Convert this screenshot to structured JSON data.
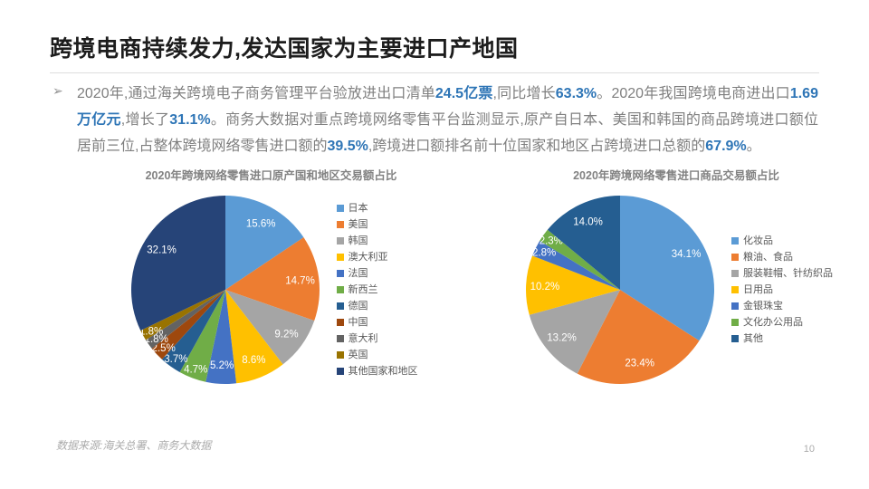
{
  "slide": {
    "title": "跨境电商持续发力,发达国家为主要进口产地国",
    "bullet_char": "➢",
    "paragraph_segments": [
      {
        "text": "2020年,通过海关跨境电子商务管理平台验放进出口清单",
        "highlight": false
      },
      {
        "text": "24.5亿票",
        "highlight": true
      },
      {
        "text": ",同比增长",
        "highlight": false
      },
      {
        "text": "63.3%",
        "highlight": true
      },
      {
        "text": "。2020年我国跨境电商进出口",
        "highlight": false
      },
      {
        "text": "1.69万亿元",
        "highlight": true
      },
      {
        "text": ",增长了",
        "highlight": false
      },
      {
        "text": "31.1%",
        "highlight": true
      },
      {
        "text": "。商务大数据对重点跨境网络零售平台监测显示,原产自日本、美国和韩国的商品跨境进口额位居前三位,占整体跨境网络零售进口额的",
        "highlight": false
      },
      {
        "text": "39.5%",
        "highlight": true
      },
      {
        "text": ",跨境进口额排名前十位国家和地区占跨境进口总额的",
        "highlight": false
      },
      {
        "text": "67.9%",
        "highlight": true
      },
      {
        "text": "。",
        "highlight": false
      }
    ],
    "source_note": "数据来源:海关总署、商务大数据",
    "page_number": "10"
  },
  "colors": {
    "highlight_blue": "#2E75B6",
    "body_gray": "#7F7F7F",
    "title_dark": "#1D1D1D",
    "legend_text": "#595959"
  },
  "chart_data": [
    {
      "type": "pie",
      "title": "2020年跨境网络零售进口原产国和地区交易额占比",
      "categories": [
        "日本",
        "美国",
        "韩国",
        "澳大利亚",
        "法国",
        "新西兰",
        "德国",
        "中国",
        "意大利",
        "英国",
        "其他国家和地区"
      ],
      "values": [
        15.6,
        14.7,
        9.2,
        8.6,
        5.2,
        4.7,
        3.7,
        2.5,
        1.8,
        1.8,
        32.1
      ],
      "colors": [
        "#5B9BD5",
        "#ED7D31",
        "#A5A5A5",
        "#FFC000",
        "#4472C4",
        "#70AD47",
        "#255E91",
        "#9E480E",
        "#636363",
        "#997300",
        "#264478"
      ],
      "label_format": "percent_one_decimal",
      "labels": [
        "15.6%",
        "14.7%",
        "9.2%",
        "8.6%",
        "5.2%",
        "4.7%",
        "3.7%",
        "2.5%",
        "1.8%",
        "1.8%",
        "32.1%"
      ],
      "legend_position": "right",
      "start_angle_deg": 0,
      "direction": "clockwise"
    },
    {
      "type": "pie",
      "title": "2020年跨境网络零售进口商品交易额占比",
      "categories": [
        "化妆品",
        "粮油、食品",
        "服装鞋帽、针纺织品",
        "日用品",
        "金银珠宝",
        "文化办公用品",
        "其他"
      ],
      "values": [
        34.1,
        23.4,
        13.2,
        10.2,
        2.8,
        2.3,
        14.0
      ],
      "colors": [
        "#5B9BD5",
        "#ED7D31",
        "#A5A5A5",
        "#FFC000",
        "#4472C4",
        "#70AD47",
        "#255E91"
      ],
      "label_format": "percent_one_decimal",
      "labels": [
        "34.1%",
        "23.4%",
        "13.2%",
        "10.2%",
        "2.8%",
        "2.3%",
        "14.0%"
      ],
      "legend_position": "right",
      "start_angle_deg": 0,
      "direction": "clockwise"
    }
  ]
}
